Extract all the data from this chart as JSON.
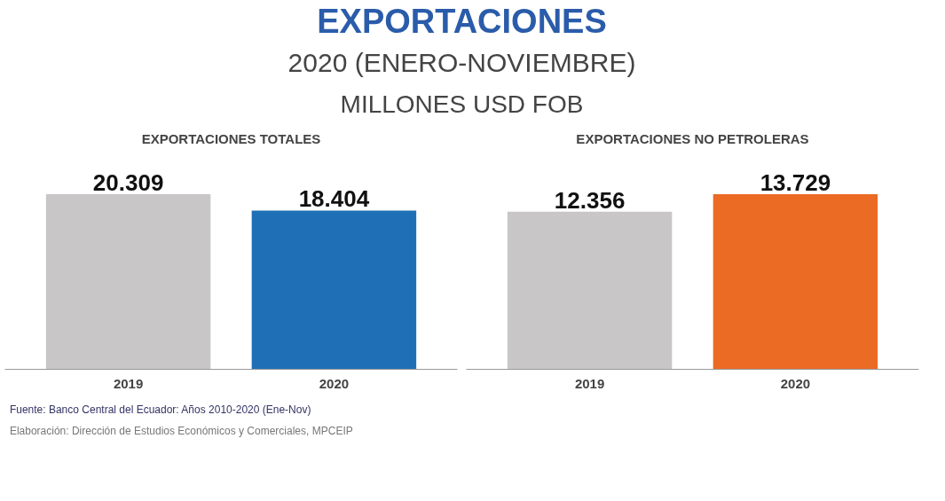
{
  "chart_data": [
    {
      "type": "bar",
      "title": "EXPORTACIONES TOTALES",
      "categories": [
        "2019",
        "2020"
      ],
      "values": [
        20309,
        18404
      ],
      "colors": [
        "#c8c6c6",
        "#1f6fb6"
      ],
      "value_labels": [
        "20.309",
        "18.404"
      ],
      "grid": false,
      "tick_labels": "x",
      "annotations": [
        "EXPORTACIONES",
        "2020 (ENERO-NOVIEMBRE)",
        "MILLONES USD FOB",
        "Fuente: Banco Central del Ecuador: Años 2010-2020 (Ene-Nov)",
        "Elaboración: Dirección de Estudios Económicos y Comerciales, MPCEIP"
      ]
    },
    {
      "type": "bar",
      "title": "EXPORTACIONES NO PETROLERAS",
      "categories": [
        "2019",
        "2020"
      ],
      "values": [
        12356,
        13729
      ],
      "colors": [
        "#c8c6c6",
        "#eb6a24"
      ],
      "value_labels": [
        "12.356",
        "13.729"
      ],
      "grid": false,
      "tick_labels": "x"
    }
  ]
}
